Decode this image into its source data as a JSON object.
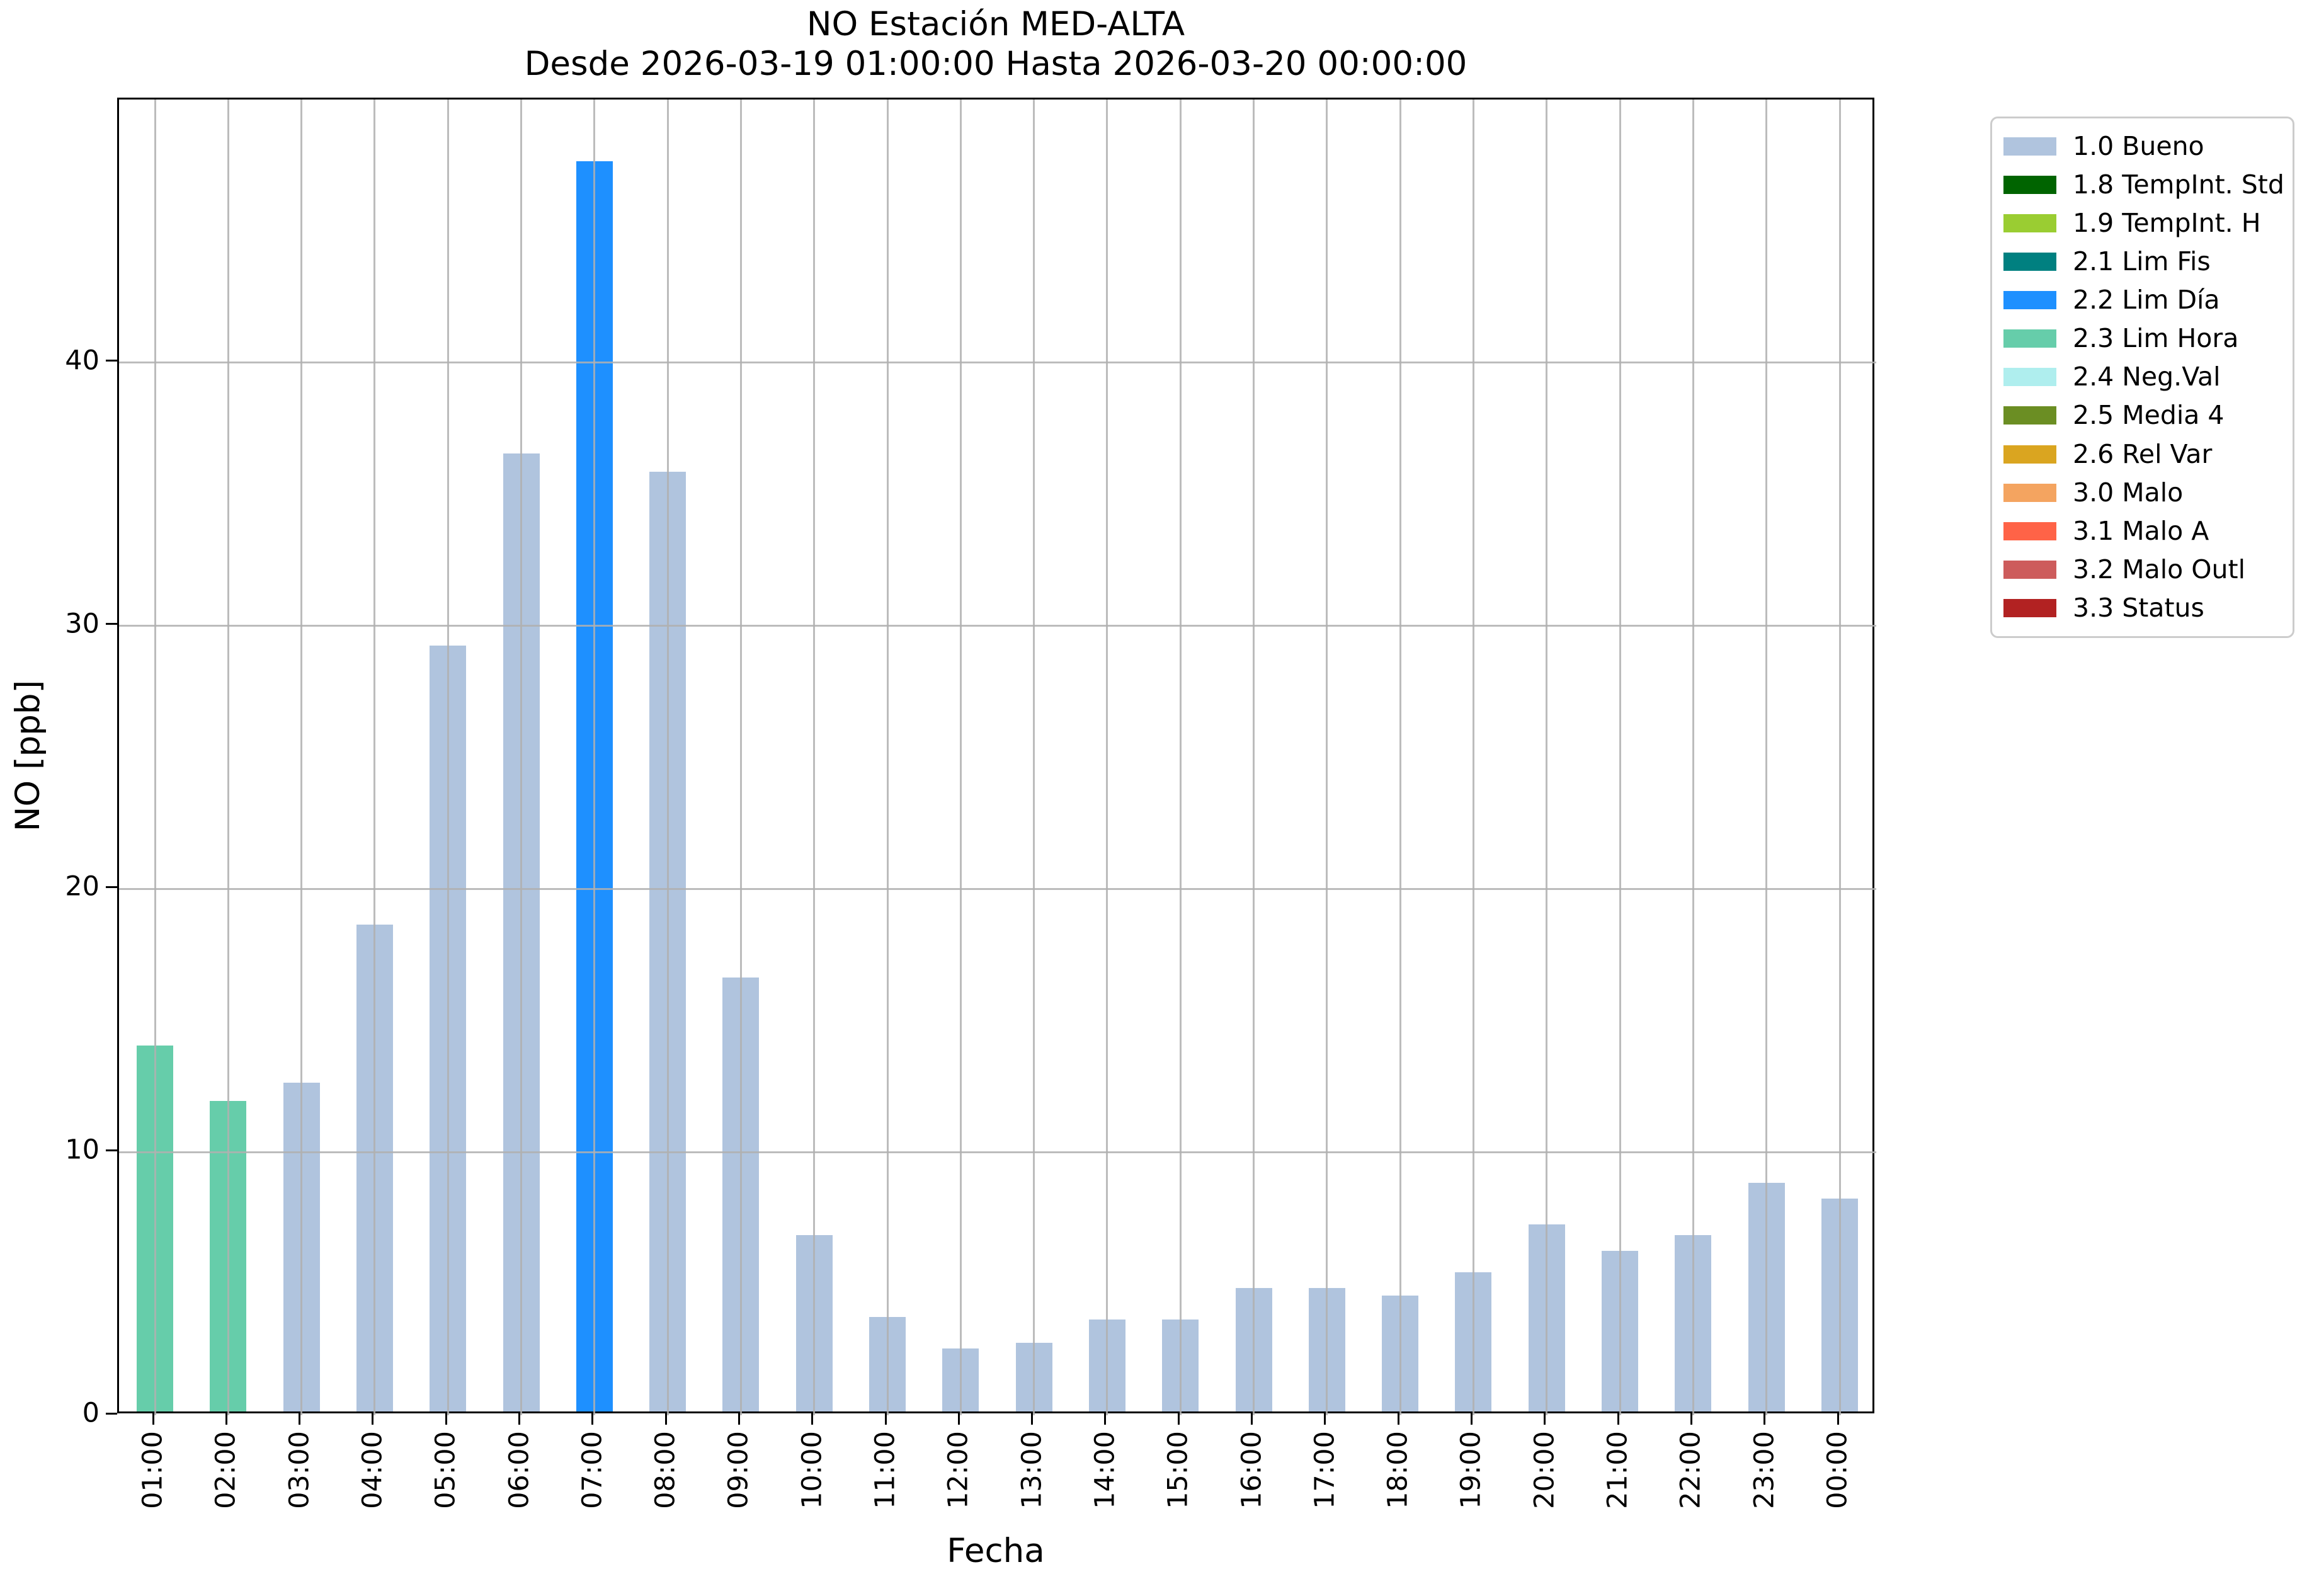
{
  "title": {
    "line1": "NO Estación MED-ALTA",
    "line2": "Desde 2026-03-19 01:00:00 Hasta 2026-03-20 00:00:00"
  },
  "axes": {
    "x_label": "Fecha",
    "y_label": "NO [ppb]"
  },
  "legend": {
    "items": [
      {
        "label": "1.0 Bueno",
        "color": "#b0c4de"
      },
      {
        "label": "1.8 TempInt. Std",
        "color": "#006400"
      },
      {
        "label": "1.9 TempInt. H",
        "color": "#9acd32"
      },
      {
        "label": "2.1 Lim Fis",
        "color": "#008080"
      },
      {
        "label": "2.2 Lim Día",
        "color": "#1e90ff"
      },
      {
        "label": "2.3 Lim Hora",
        "color": "#66cdaa"
      },
      {
        "label": "2.4 Neg.Val",
        "color": "#afeeee"
      },
      {
        "label": "2.5 Media 4",
        "color": "#6b8e23"
      },
      {
        "label": "2.6 Rel Var",
        "color": "#daa520"
      },
      {
        "label": "3.0 Malo",
        "color": "#f4a460"
      },
      {
        "label": "3.1 Malo A",
        "color": "#ff6347"
      },
      {
        "label": "3.2 Malo Outl",
        "color": "#cd5c5c"
      },
      {
        "label": "3.3 Status",
        "color": "#b22222"
      }
    ]
  },
  "chart_data": {
    "type": "bar",
    "title": "NO Estación MED-ALTA",
    "subtitle": "Desde 2026-03-19 01:00:00 Hasta 2026-03-20 00:00:00",
    "xlabel": "Fecha",
    "ylabel": "NO [ppb]",
    "ylim": [
      0,
      50
    ],
    "y_ticks": [
      0,
      10,
      20,
      30,
      40
    ],
    "grid": true,
    "legend_position": "outside-right",
    "categories": [
      "01:00",
      "02:00",
      "03:00",
      "04:00",
      "05:00",
      "06:00",
      "07:00",
      "08:00",
      "09:00",
      "10:00",
      "11:00",
      "12:00",
      "13:00",
      "14:00",
      "15:00",
      "16:00",
      "17:00",
      "18:00",
      "19:00",
      "20:00",
      "21:00",
      "22:00",
      "23:00",
      "00:00"
    ],
    "values": [
      13.9,
      11.8,
      12.5,
      18.5,
      29.1,
      36.4,
      47.5,
      35.7,
      16.5,
      6.7,
      3.6,
      2.4,
      2.6,
      3.5,
      3.5,
      4.7,
      4.7,
      4.4,
      5.3,
      7.1,
      6.1,
      6.7,
      8.7,
      8.1
    ],
    "bar_status": [
      "2.3 Lim Hora",
      "2.3 Lim Hora",
      "1.0 Bueno",
      "1.0 Bueno",
      "1.0 Bueno",
      "1.0 Bueno",
      "2.2 Lim Día",
      "1.0 Bueno",
      "1.0 Bueno",
      "1.0 Bueno",
      "1.0 Bueno",
      "1.0 Bueno",
      "1.0 Bueno",
      "1.0 Bueno",
      "1.0 Bueno",
      "1.0 Bueno",
      "1.0 Bueno",
      "1.0 Bueno",
      "1.0 Bueno",
      "1.0 Bueno",
      "1.0 Bueno",
      "1.0 Bueno",
      "1.0 Bueno",
      "1.0 Bueno"
    ],
    "status_colors": {
      "1.0 Bueno": "#b0c4de",
      "2.2 Lim Día": "#1e90ff",
      "2.3 Lim Hora": "#66cdaa"
    }
  }
}
